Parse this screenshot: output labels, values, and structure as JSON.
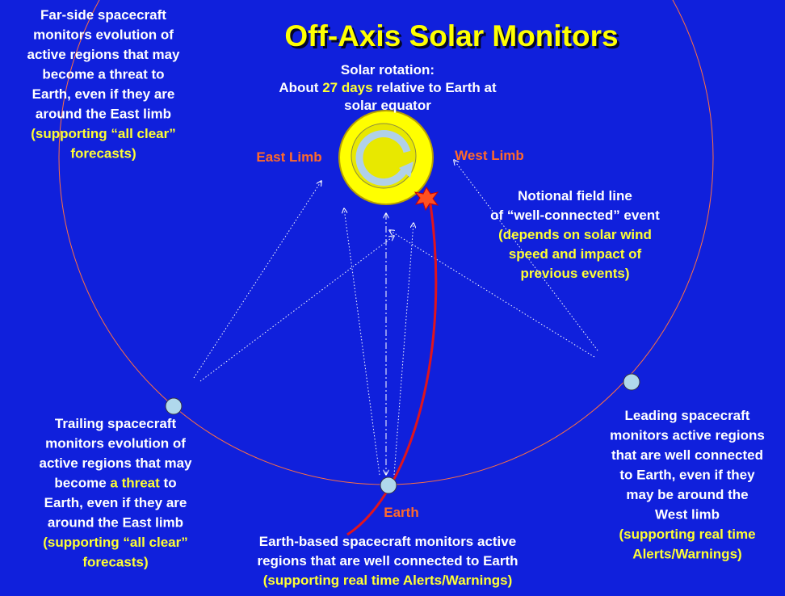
{
  "title": {
    "text": "Off-Axis Solar Monitors",
    "color": "#ffff00"
  },
  "blocks": {
    "far_side": {
      "color": "#ffffff",
      "lines": [
        "Far-side spacecraft",
        "monitors evolution of",
        "active regions that may",
        "become a threat to",
        "Earth, even if they are",
        "around the East limb",
        {
          "text": "(supporting “all clear”",
          "color": "#ffff33"
        },
        {
          "text": "forecasts)",
          "color": "#ffff33"
        }
      ]
    },
    "solar_rotation": {
      "color": "#ffffff",
      "lines": [
        "Solar rotation:",
        [
          "About ",
          {
            "text": "27 days",
            "color": "#ffff33"
          },
          " relative to Earth at"
        ],
        "solar equator"
      ]
    },
    "east_limb": {
      "color": "#ff6a2a",
      "lines": [
        "East Limb"
      ]
    },
    "west_limb": {
      "color": "#ff6a2a",
      "lines": [
        "West Limb"
      ]
    },
    "notional": {
      "color": "#ffffff",
      "lines": [
        "Notional  field line",
        "of “well-connected” event",
        {
          "text": "(depends on solar wind",
          "color": "#ffff33"
        },
        {
          "text": "speed and impact of",
          "color": "#ffff33"
        },
        {
          "text": "previous events)",
          "color": "#ffff33"
        }
      ]
    },
    "trailing": {
      "color": "#ffffff",
      "lines": [
        "Trailing spacecraft",
        "monitors evolution of",
        "active regions that may",
        [
          "become ",
          {
            "text": "a threat",
            "color": "#ffff33"
          },
          " to"
        ],
        "Earth, even if they are",
        "around the East limb",
        {
          "text": "(supporting “all clear”",
          "color": "#ffff33"
        },
        {
          "text": "forecasts)",
          "color": "#ffff33"
        }
      ]
    },
    "leading": {
      "color": "#ffffff",
      "lines": [
        "Leading spacecraft",
        "monitors active regions",
        "that are well connected",
        "to Earth, even if they",
        "may be around the",
        "West limb",
        {
          "text": "(supporting real time",
          "color": "#ffff33"
        },
        {
          "text": "Alerts/Warnings)",
          "color": "#ffff33"
        }
      ]
    },
    "earth": {
      "color": "#ff6a2a",
      "lines": [
        "Earth"
      ]
    },
    "earth_based": {
      "color": "#ffffff",
      "lines": [
        "Earth-based spacecraft monitors active",
        "regions that are well connected to Earth",
        {
          "text": "(supporting real time Alerts/Warnings)",
          "color": "#ffff33"
        }
      ]
    }
  }
}
